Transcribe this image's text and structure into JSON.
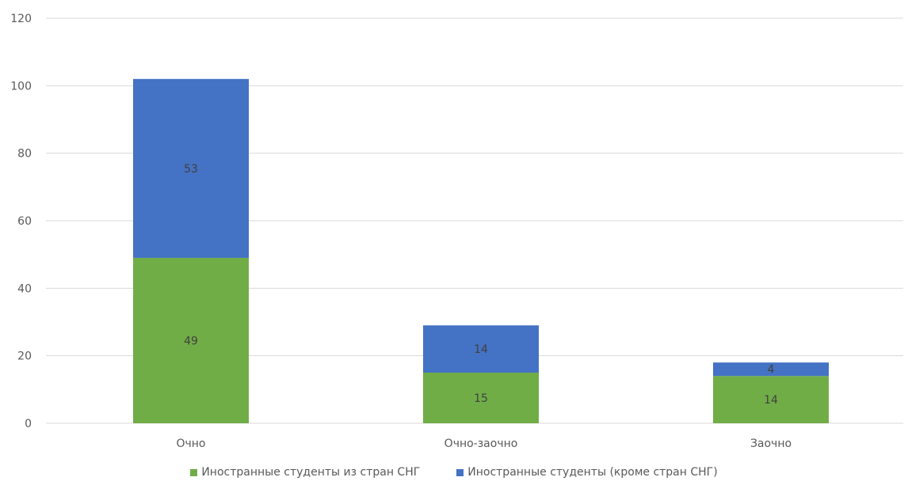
{
  "chart_data": {
    "type": "bar",
    "stacked": true,
    "categories": [
      "Очно",
      "Очно-заочно",
      "Заочно"
    ],
    "series": [
      {
        "name": "Иностранные студенты из стран СНГ",
        "values": [
          49,
          15,
          14
        ],
        "color": "#70ad47"
      },
      {
        "name": "Иностранные студенты (кроме стран СНГ)",
        "values": [
          53,
          14,
          4
        ],
        "color": "#4472c4"
      }
    ],
    "ylim": [
      0,
      120
    ],
    "yticks": [
      0,
      20,
      40,
      60,
      80,
      100,
      120
    ],
    "grid": true,
    "legend": "bottom"
  }
}
